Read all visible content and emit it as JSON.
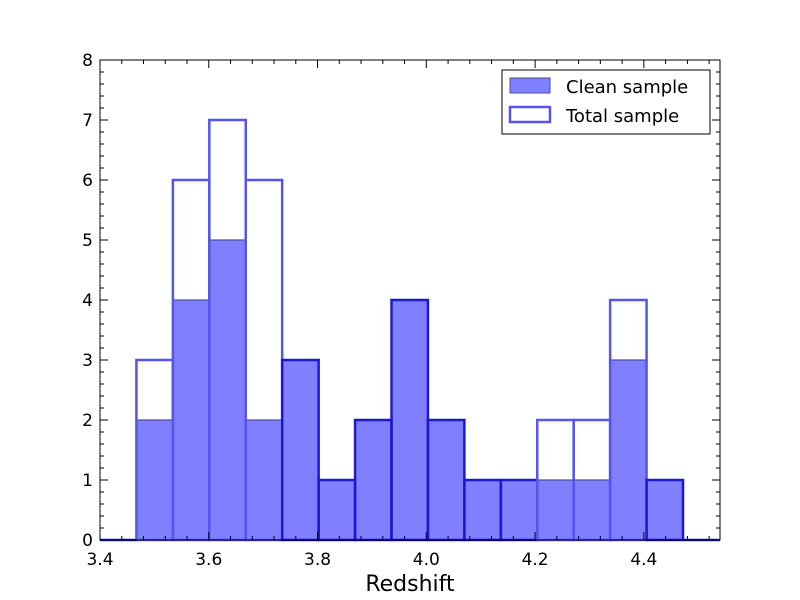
{
  "chart_data": {
    "type": "bar",
    "subtype": "histogram",
    "title": "",
    "xlabel": "Redshift",
    "ylabel": "",
    "xlim": [
      3.4,
      4.54
    ],
    "ylim": [
      0,
      8
    ],
    "xticks": [
      "3.4",
      "3.6",
      "3.8",
      "4.0",
      "4.2",
      "4.4"
    ],
    "yticks": [
      "0",
      "1",
      "2",
      "3",
      "4",
      "5",
      "6",
      "7",
      "8"
    ],
    "bin_edges": [
      3.467,
      3.534,
      3.601,
      3.668,
      3.735,
      3.802,
      3.869,
      3.936,
      4.003,
      4.07,
      4.137,
      4.204,
      4.271,
      4.338,
      4.405,
      4.472
    ],
    "series": [
      {
        "name": "Clean sample",
        "style": "filled",
        "values": [
          2,
          4,
          5,
          2,
          3,
          1,
          2,
          4,
          2,
          1,
          1,
          1,
          1,
          3,
          1
        ]
      },
      {
        "name": "Total sample",
        "style": "outline",
        "values": [
          3,
          6,
          7,
          6,
          3,
          1,
          2,
          4,
          2,
          1,
          1,
          2,
          2,
          4,
          1
        ]
      }
    ],
    "legend": {
      "position": "top-right",
      "entries": [
        "Clean sample",
        "Total sample"
      ]
    },
    "colors": {
      "fill": "#8080ff",
      "fill_edge": "#4c4c99",
      "outline": "#5555ee",
      "overlap_edge": "#1a1acc"
    }
  }
}
